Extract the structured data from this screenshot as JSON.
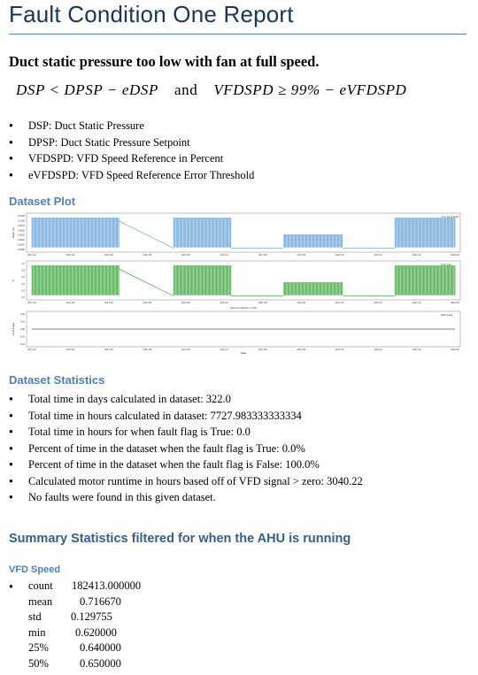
{
  "report": {
    "title": "Fault Condition One Report",
    "subtitle": "Duct static pressure too low with fan at full speed.",
    "formula": {
      "left": "DSP < DPSP − eDSP",
      "and": "and",
      "right": "VFDSPD ≥ 99% − eVFDSPD"
    },
    "definitions": [
      "DSP: Duct Static Pressure",
      "DPSP: Duct Static Pressure Setpoint",
      "VFDSPD: VFD Speed Reference in Percent",
      "eVFDSPD: VFD Speed Reference Error Threshold"
    ]
  },
  "plot_section": {
    "heading": "Dataset Plot",
    "middle_title": "Fault Conditions 1 Plot",
    "x_ticks": [
      "2017-02",
      "2017-03",
      "2017-04",
      "2017-05",
      "2017-06",
      "2017-07",
      "2017-08",
      "2017-09",
      "2017-10",
      "2017-11",
      "2017-12",
      "2018-01"
    ],
    "x_label": "Date",
    "colors": {
      "duct_static": "#5b9bd5",
      "vfd": "#2ca02c",
      "fault": "#555555"
    }
  },
  "chart_data": [
    {
      "type": "line",
      "title": "",
      "ylabel": "Static (in)",
      "legend": [
        "Duct Static"
      ],
      "legend_position": "top-right",
      "y_ticks": [
        "0.0125",
        "0.0100",
        "0.0075",
        "0.0050",
        "0.0025",
        "0.0000",
        "-0.0025",
        "-0.0050"
      ],
      "note": "dense cyclic signal during occupied periods"
    },
    {
      "type": "line",
      "title": "",
      "ylabel": "%",
      "legend": [
        "Fan"
      ],
      "legend_position": "top-right",
      "y_ticks": [
        "1.0",
        "0.8",
        "0.6",
        "0.4",
        "0.2",
        "0.0"
      ]
    },
    {
      "type": "line",
      "title": "Fault Conditions 1 Plot",
      "xlabel": "Date",
      "ylabel": "Fault Flags",
      "legend": [
        "Fault"
      ],
      "legend_position": "top-right",
      "y_ticks": [
        "0.04",
        "0.02",
        "0.00",
        "-0.02",
        "-0.04"
      ],
      "values_constant": 0
    }
  ],
  "stats_section": {
    "heading": "Dataset Statistics",
    "items": [
      "Total time in days calculated in dataset: 322.0",
      "Total time in hours calculated in dataset: 7727.983333333334",
      "Total time in hours for when fault flag is True: 0.0",
      "Percent of time in the dataset when the fault flag is True: 0.0%",
      "Percent of time in the dataset when the fault flag is False: 100.0%",
      "Calculated motor runtime in hours based off of VFD signal > zero: 3040.22",
      "No faults were found in this given dataset."
    ]
  },
  "summary_section": {
    "heading": "Summary Statistics filtered for when the AHU is running",
    "sub_heading": "VFD Speed",
    "rows": [
      {
        "key": "count",
        "value": "182413.000000"
      },
      {
        "key": "mean",
        "value": "0.716670"
      },
      {
        "key": "std",
        "value": "0.129755"
      },
      {
        "key": "min",
        "value": "0.620000"
      },
      {
        "key": "25%",
        "value": "0.640000"
      },
      {
        "key": "50%",
        "value": "0.650000"
      }
    ]
  }
}
